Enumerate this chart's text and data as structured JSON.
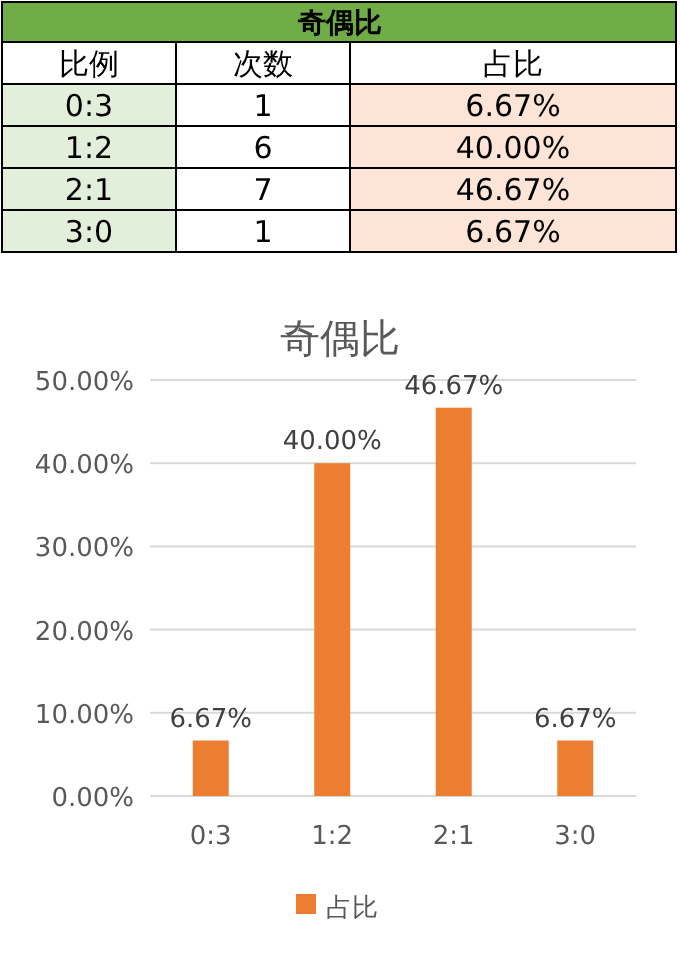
{
  "chart_data": [
    {
      "type": "other",
      "title": "奇偶比",
      "annotations": [
        "比例",
        "次数",
        "占比",
        "0:3",
        "1",
        "6.67%",
        "1:2",
        "6",
        "40.00%",
        "2:1",
        "7",
        "46.67%",
        "3:0",
        "1",
        "6.67%"
      ]
    },
    {
      "type": "bar",
      "title": "奇偶比",
      "categories": [
        "0:3",
        "1:2",
        "2:1",
        "3:0"
      ],
      "series": [
        {
          "name": "占比",
          "color": "#ed7d31",
          "values": [
            6.67,
            40.0,
            46.67,
            6.67
          ],
          "value_labels": [
            "6.67%",
            "40.00%",
            "46.67%",
            "6.67%"
          ]
        }
      ],
      "ylim": [
        0,
        50
      ],
      "yticks": [
        {
          "value": 0,
          "label": "0.00%"
        },
        {
          "value": 10,
          "label": "10.00%"
        },
        {
          "value": 20,
          "label": "20.00%"
        },
        {
          "value": 30,
          "label": "30.00%"
        },
        {
          "value": 40,
          "label": "40.00%"
        },
        {
          "value": 50,
          "label": "50.00%"
        }
      ],
      "grid": "y",
      "legend": "bottom"
    }
  ]
}
